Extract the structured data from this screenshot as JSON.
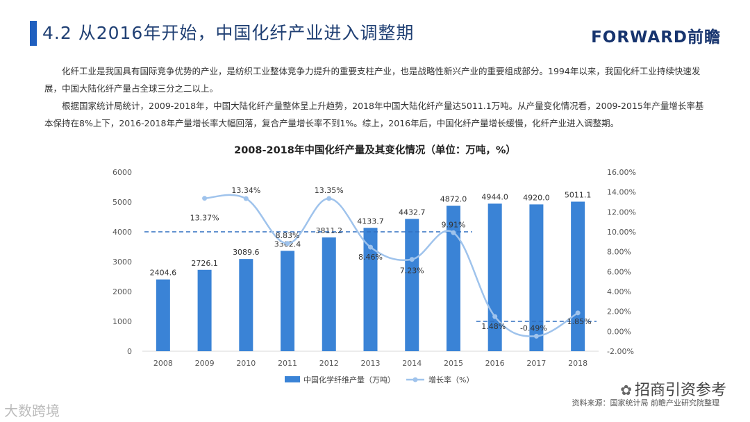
{
  "header": {
    "title": "4.2 从2016年开始，中国化纤产业进入调整期",
    "logo": "FORWARD前瞻"
  },
  "body": {
    "paragraph1": "化纤工业是我国具有国际竞争优势的产业，是纺织工业整体竞争力提升的重要支柱产业，也是战略性新兴产业的重要组成部分。1994年以来，我国化纤工业持续快速发展，中国大陆化纤产量占全球三分之二以上。",
    "paragraph2": "根据国家统计局统计，2009-2018年，中国大陆化纤产量整体呈上升趋势，2018年中国大陆化纤产量达5011.1万吨。从产量变化情况看，2009-2015年产量增长率基本保持在8%上下，2016-2018年产量增长率大幅回落，复合产量增长率不到1%。综上，2016年后，中国化纤产量增长缓慢，化纤产业进入调整期。"
  },
  "footer": {
    "source": "资料来源：国家统计局  前瞻产业研究院整理",
    "watermark_merchant": "招商引资参考",
    "watermark_bigdata": "大数跨境"
  },
  "colors": {
    "bar": "#3a83d6",
    "line": "#9fc3ec",
    "dashed": "#2f6fc0",
    "title_accent": "#1f5fbf"
  },
  "chart_data": {
    "type": "bar",
    "title": "2008-2018年中国化纤产量及其变化情况（单位：万吨，%）",
    "categories": [
      "2008",
      "2009",
      "2010",
      "2011",
      "2012",
      "2013",
      "2014",
      "2015",
      "2016",
      "2017",
      "2018"
    ],
    "series": [
      {
        "name": "中国化学纤维产量（万吨）",
        "type": "bar",
        "axis": "left",
        "values": [
          2404.6,
          2726.1,
          3089.6,
          3362.4,
          3811.2,
          4133.7,
          4432.7,
          4872.0,
          4944.0,
          4920.0,
          5011.1
        ],
        "labels": [
          "2404.6",
          "2726.1",
          "3089.6",
          "3362.4",
          "3811.2",
          "4133.7",
          "4432.7",
          "4872.0",
          "4944.0",
          "4920.0",
          "5011.1"
        ]
      },
      {
        "name": "增长率（%）",
        "type": "line",
        "axis": "right",
        "x": [
          "2009",
          "2010",
          "2011",
          "2012",
          "2013",
          "2014",
          "2015",
          "2016",
          "2017",
          "2018"
        ],
        "values": [
          13.37,
          13.34,
          8.83,
          13.35,
          8.46,
          7.23,
          9.91,
          1.48,
          -0.49,
          1.85
        ],
        "labels": [
          "13.37%",
          "13.34%",
          "8.83%",
          "13.35%",
          "8.46%",
          "7.23%",
          "9.91%",
          "1.48%",
          "-0.49%",
          "1.85%"
        ]
      }
    ],
    "left_axis": {
      "ylim": [
        0,
        6000
      ],
      "ticks": [
        "0",
        "1000",
        "2000",
        "3000",
        "4000",
        "5000",
        "6000"
      ]
    },
    "right_axis": {
      "ylim": [
        -2,
        16
      ],
      "ticks": [
        "-2.00%",
        "0.00%",
        "2.00%",
        "4.00%",
        "6.00%",
        "8.00%",
        "10.00%",
        "12.00%",
        "14.00%",
        "16.00%"
      ]
    },
    "reference_lines": [
      {
        "axis": "right",
        "value": 10,
        "from": "2008",
        "to": "2015"
      },
      {
        "axis": "right",
        "value": 1,
        "from": "2016",
        "to": "2018"
      }
    ],
    "legend": {
      "position": "bottom-center"
    }
  }
}
